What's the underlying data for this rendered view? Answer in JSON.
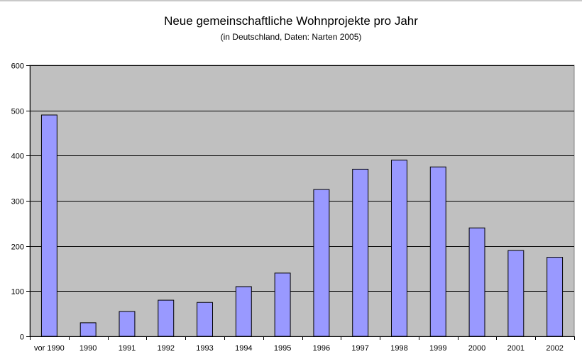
{
  "chart_data": {
    "type": "bar",
    "title": "Neue gemeinschaftliche Wohnprojekte pro Jahr",
    "subtitle": "(in Deutschland, Daten: Narten 2005)",
    "xlabel": "",
    "ylabel": "",
    "categories": [
      "vor 1990",
      "1990",
      "1991",
      "1992",
      "1993",
      "1994",
      "1995",
      "1996",
      "1997",
      "1998",
      "1999",
      "2000",
      "2001",
      "2002"
    ],
    "values": [
      490,
      30,
      55,
      80,
      75,
      110,
      140,
      325,
      370,
      390,
      375,
      240,
      190,
      175
    ],
    "ylim": [
      0,
      600
    ],
    "yticks": [
      0,
      100,
      200,
      300,
      400,
      500,
      600
    ],
    "yticks_labels": [
      "0",
      "100",
      "200",
      "300",
      "400",
      "500",
      "600"
    ],
    "grid": true,
    "legend": "none",
    "colors": {
      "bar_fill": "#9999ff",
      "bar_stroke": "#000000",
      "plot_background": "#c0c0c0",
      "gridline": "#000000"
    }
  }
}
